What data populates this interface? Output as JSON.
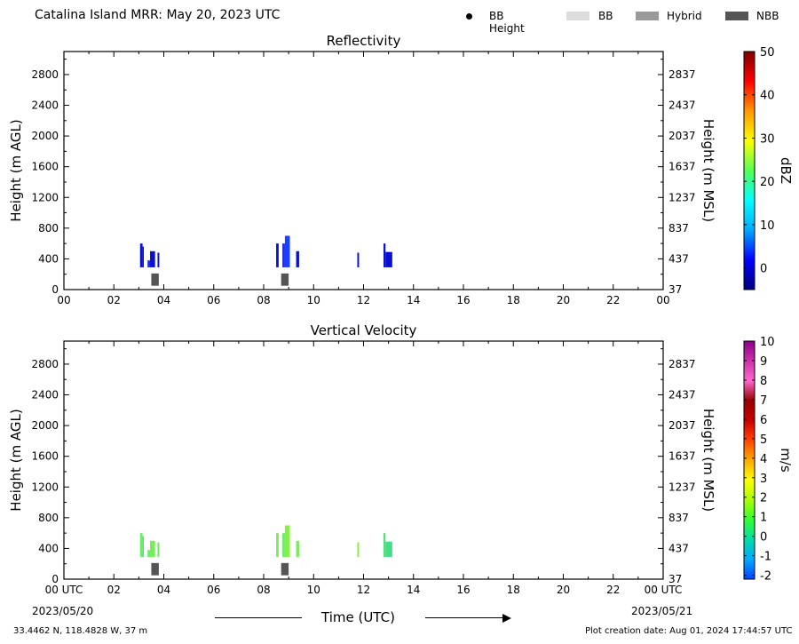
{
  "header": {
    "title": "Catalina Island MRR:  May 20, 2023 UTC"
  },
  "legend": {
    "items": [
      {
        "label": "BB Height",
        "kind": "dot",
        "color": "#000000"
      },
      {
        "label": "BB",
        "kind": "swatch",
        "color": "#dddddd"
      },
      {
        "label": "Hybrid",
        "kind": "swatch",
        "color": "#999999"
      },
      {
        "label": "NBB",
        "kind": "swatch",
        "color": "#555555"
      }
    ]
  },
  "chart_data": [
    {
      "type": "heatmap",
      "title": "Reflectivity",
      "ylabel": "Height (m AGL)",
      "y2label": "Height (m MSL)",
      "ylim": [
        0,
        3100
      ],
      "yticks": [
        0,
        400,
        800,
        1200,
        1600,
        2000,
        2400,
        2800
      ],
      "y2ticks": [
        "37",
        "437",
        "837",
        "1237",
        "1637",
        "2037",
        "2437",
        "2837"
      ],
      "xlim": [
        0,
        24
      ],
      "xticks": [
        "00",
        "02",
        "04",
        "06",
        "08",
        "10",
        "12",
        "14",
        "16",
        "18",
        "20",
        "22",
        "00"
      ],
      "colorbar": {
        "label": "dBZ",
        "range": [
          -5,
          50
        ],
        "ticks": [
          "0",
          "10",
          "20",
          "30",
          "40",
          "50"
        ],
        "tick_values": [
          0,
          10,
          20,
          30,
          40,
          50
        ],
        "stops": [
          "#00007f",
          "#0000ff",
          "#00aaff",
          "#00ffff",
          "#55ff55",
          "#ffff00",
          "#ff9900",
          "#ff0000",
          "#800000"
        ]
      },
      "echoes": [
        {
          "x0": 3.05,
          "x1": 3.15,
          "y0": 290,
          "y1": 600,
          "color": "#0a10d0"
        },
        {
          "x0": 3.15,
          "x1": 3.2,
          "y0": 290,
          "y1": 560,
          "color": "#0a10d0"
        },
        {
          "x0": 3.35,
          "x1": 3.45,
          "y0": 290,
          "y1": 380,
          "color": "#1a2aee"
        },
        {
          "x0": 3.45,
          "x1": 3.65,
          "y0": 290,
          "y1": 500,
          "color": "#0a10d0"
        },
        {
          "x0": 3.75,
          "x1": 3.82,
          "y0": 290,
          "y1": 480,
          "color": "#0a10d0"
        },
        {
          "x0": 8.5,
          "x1": 8.6,
          "y0": 290,
          "y1": 600,
          "color": "#0a10d0"
        },
        {
          "x0": 8.75,
          "x1": 8.85,
          "y0": 290,
          "y1": 600,
          "color": "#1a2aee"
        },
        {
          "x0": 8.85,
          "x1": 9.05,
          "y0": 290,
          "y1": 700,
          "color": "#1a40ff"
        },
        {
          "x0": 9.3,
          "x1": 9.42,
          "y0": 290,
          "y1": 500,
          "color": "#0a10d0"
        },
        {
          "x0": 11.75,
          "x1": 11.82,
          "y0": 290,
          "y1": 480,
          "color": "#0a10d0"
        },
        {
          "x0": 12.8,
          "x1": 12.88,
          "y0": 290,
          "y1": 600,
          "color": "#0a10d0"
        },
        {
          "x0": 12.88,
          "x1": 13.15,
          "y0": 290,
          "y1": 490,
          "color": "#0a10d0"
        }
      ],
      "bright_band": [
        {
          "x0": 3.5,
          "x1": 3.8,
          "y0": 50,
          "y1": 210,
          "category": "NBB"
        },
        {
          "x0": 8.7,
          "x1": 9.0,
          "y0": 50,
          "y1": 210,
          "category": "NBB"
        }
      ]
    },
    {
      "type": "heatmap",
      "title": "Vertical Velocity",
      "ylabel": "Height (m AGL)",
      "y2label": "Height (m MSL)",
      "ylim": [
        0,
        3100
      ],
      "yticks": [
        0,
        400,
        800,
        1200,
        1600,
        2000,
        2400,
        2800
      ],
      "y2ticks": [
        "37",
        "437",
        "837",
        "1237",
        "1637",
        "2037",
        "2437",
        "2837"
      ],
      "xlim": [
        0,
        24
      ],
      "xticks": [
        "00 UTC",
        "02",
        "04",
        "06",
        "08",
        "10",
        "12",
        "14",
        "16",
        "18",
        "20",
        "22",
        "00 UTC"
      ],
      "colorbar": {
        "label": "m/s",
        "range": [
          -2.2,
          10
        ],
        "ticks": [
          "-2",
          "-1",
          "0",
          "1",
          "2",
          "3",
          "4",
          "5",
          "6",
          "7",
          "8",
          "9",
          "10"
        ],
        "tick_values": [
          -2,
          -1,
          0,
          1,
          2,
          3,
          4,
          5,
          6,
          7,
          8,
          9,
          10
        ],
        "stops": [
          "#0044ff",
          "#00aaff",
          "#00ddaa",
          "#33ff33",
          "#aaff00",
          "#ffff00",
          "#ffaa00",
          "#ff4400",
          "#cc0000",
          "#990000",
          "#ff66cc",
          "#cc33aa",
          "#880088"
        ]
      },
      "echoes": [
        {
          "x0": 3.05,
          "x1": 3.15,
          "y0": 290,
          "y1": 600,
          "color": "#66ee66"
        },
        {
          "x0": 3.15,
          "x1": 3.2,
          "y0": 290,
          "y1": 560,
          "color": "#55dd77"
        },
        {
          "x0": 3.35,
          "x1": 3.45,
          "y0": 290,
          "y1": 380,
          "color": "#66ee66"
        },
        {
          "x0": 3.45,
          "x1": 3.65,
          "y0": 290,
          "y1": 500,
          "color": "#77ee55"
        },
        {
          "x0": 3.75,
          "x1": 3.82,
          "y0": 290,
          "y1": 480,
          "color": "#66ee66"
        },
        {
          "x0": 8.5,
          "x1": 8.6,
          "y0": 290,
          "y1": 600,
          "color": "#77ee55"
        },
        {
          "x0": 8.75,
          "x1": 8.85,
          "y0": 290,
          "y1": 600,
          "color": "#66ee66"
        },
        {
          "x0": 8.85,
          "x1": 9.05,
          "y0": 290,
          "y1": 700,
          "color": "#88ee44"
        },
        {
          "x0": 9.3,
          "x1": 9.42,
          "y0": 290,
          "y1": 500,
          "color": "#77ee55"
        },
        {
          "x0": 11.75,
          "x1": 11.82,
          "y0": 290,
          "y1": 480,
          "color": "#88ee44"
        },
        {
          "x0": 12.8,
          "x1": 12.88,
          "y0": 290,
          "y1": 600,
          "color": "#55dd77"
        },
        {
          "x0": 12.88,
          "x1": 13.15,
          "y0": 290,
          "y1": 490,
          "color": "#44dd88"
        }
      ],
      "bright_band": [
        {
          "x0": 3.5,
          "x1": 3.8,
          "y0": 50,
          "y1": 210,
          "category": "NBB"
        },
        {
          "x0": 8.7,
          "x1": 9.0,
          "y0": 50,
          "y1": 210,
          "category": "NBB"
        }
      ]
    }
  ],
  "xaxis": {
    "label": "Time (UTC)",
    "start_date": "2023/05/20",
    "end_date": "2023/05/21"
  },
  "footer": {
    "location": "33.4462 N, 118.4828 W, 37 m",
    "created": "Plot creation date: Aug 01, 2024 17:44:57 UTC"
  }
}
